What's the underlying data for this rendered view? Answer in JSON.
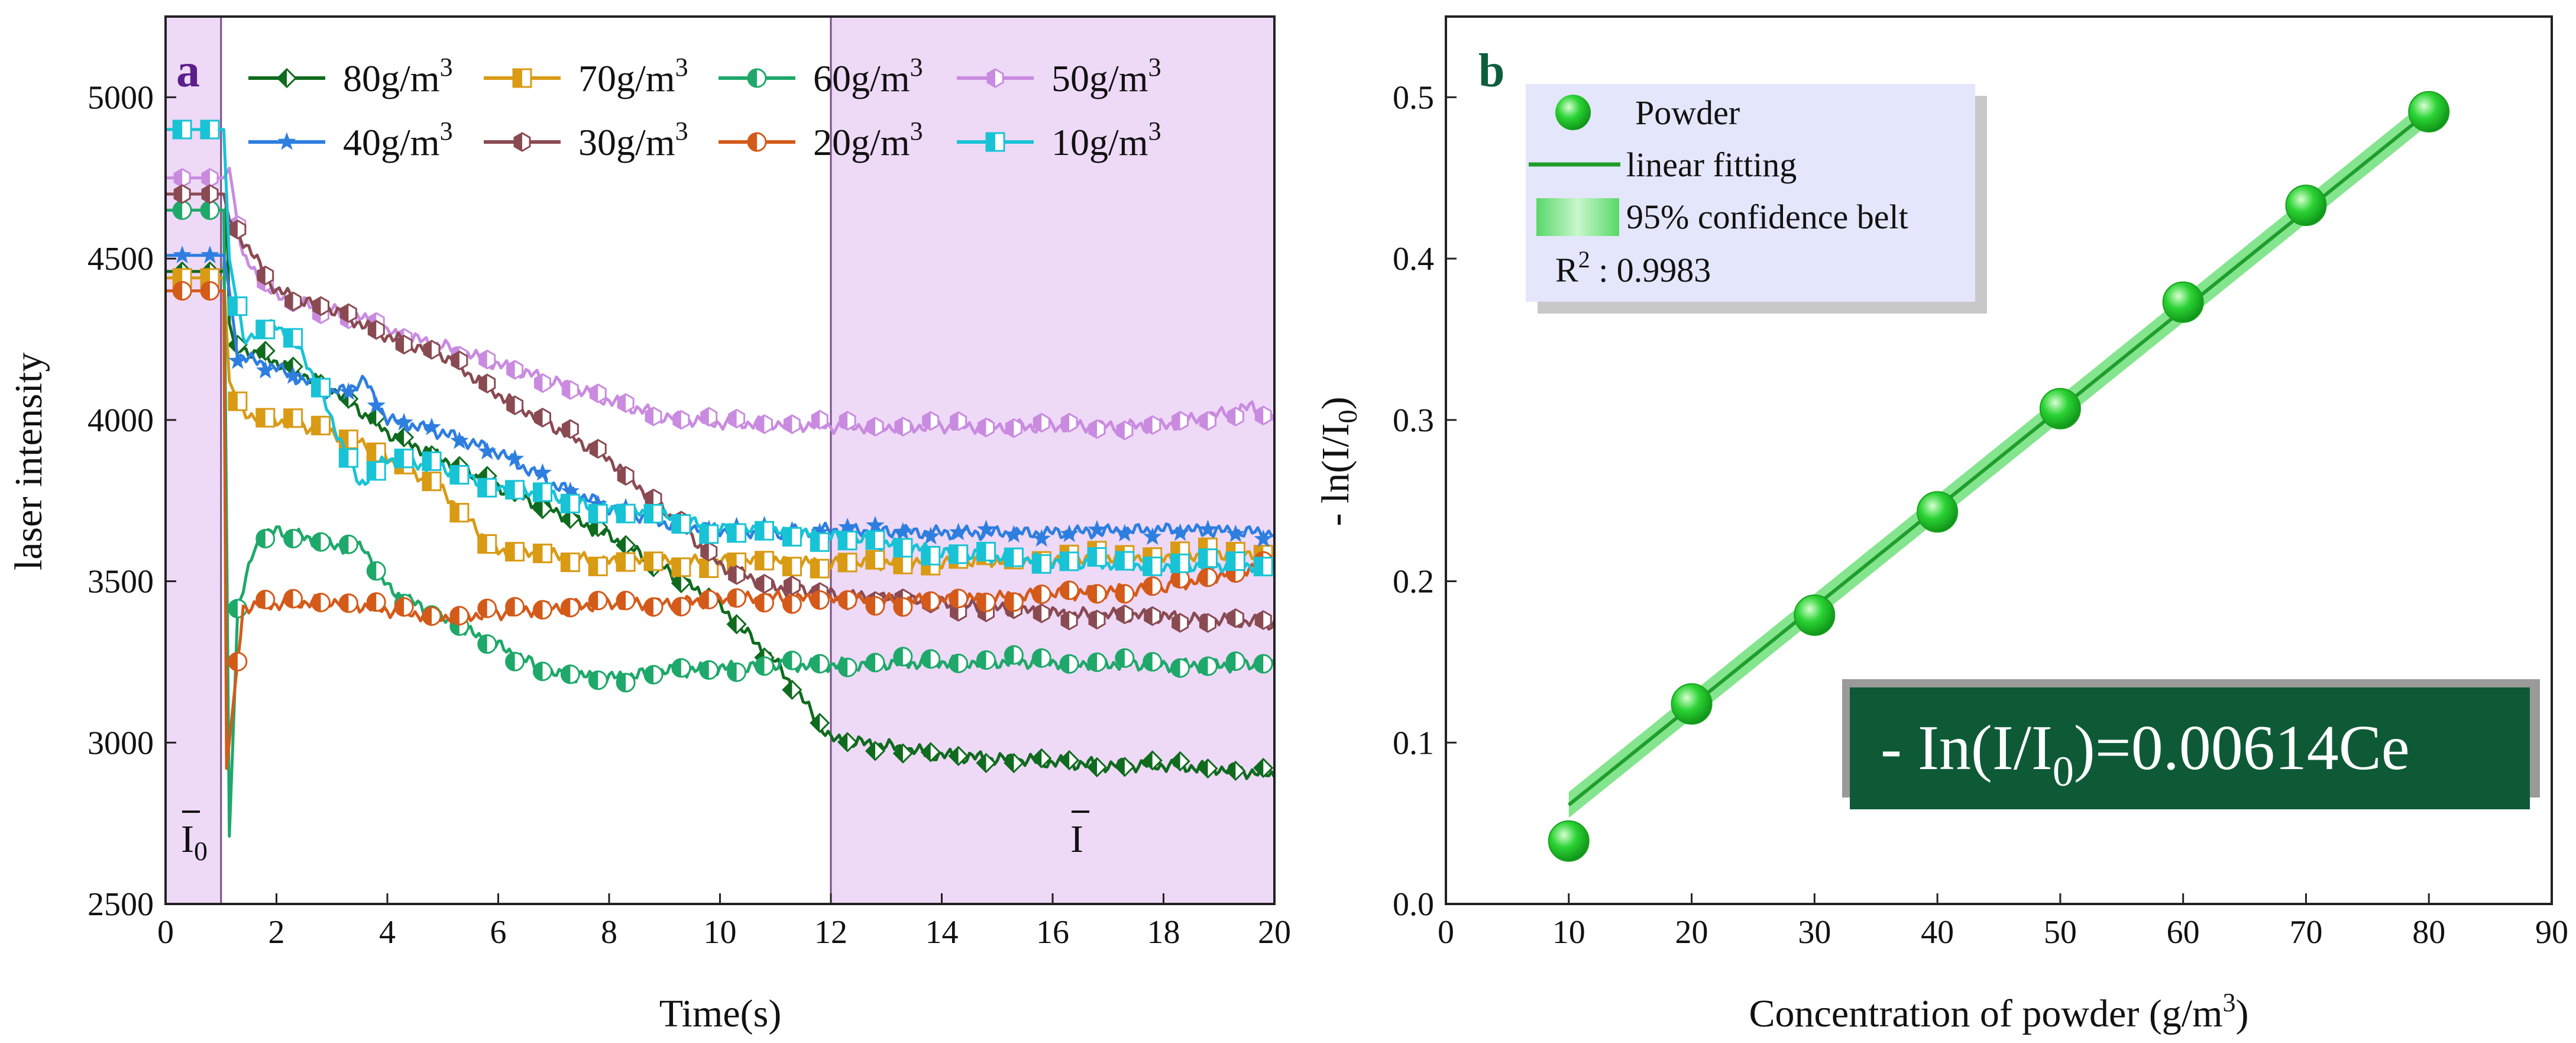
{
  "colors": {
    "region_fill": "#eed9f7",
    "region_border": "#7a4d8a",
    "fit_line": "#1f9e2c",
    "belt": "#6fe07a",
    "marker": "#1ec227",
    "marker_light": "#aef7a8",
    "legend_b_bg": "#e4e6fb",
    "legend_b_shadow": "#c8c8c8",
    "formula_bg": "#0e5a37",
    "formula_shadow": "#9a9a9a",
    "letter_a": "#5a1f8a",
    "letter_b": "#0d5d3c"
  },
  "chart_data": [
    {
      "id": "a",
      "panel_letter": "a",
      "type": "line",
      "xlabel": "Time(s)",
      "ylabel": "laser intensity",
      "xlim": [
        0,
        20
      ],
      "ylim": [
        2500,
        5250
      ],
      "xticks": [
        0,
        2,
        4,
        6,
        8,
        10,
        12,
        14,
        16,
        18,
        20
      ],
      "yticks": [
        2500,
        3000,
        3500,
        4000,
        4500,
        5000
      ],
      "shaded_regions": [
        [
          0,
          1
        ],
        [
          12,
          20
        ]
      ],
      "annotations": [
        {
          "text_base": "I",
          "text_sub": "0",
          "x": 0.5,
          "y": 2740
        },
        {
          "text_base": "I",
          "text_sub": "",
          "x": 16.8,
          "y": 2740
        }
      ],
      "series": [
        {
          "name": "80g/m³",
          "label_base": "80g/m",
          "label_sup": "3",
          "color": "#0f6b1e",
          "marker": "diamond",
          "points": [
            [
              0,
              4460
            ],
            [
              1.05,
              4460
            ],
            [
              1.1,
              4700
            ],
            [
              1.15,
              4300
            ],
            [
              1.25,
              4230
            ],
            [
              2,
              4180
            ],
            [
              3,
              4100
            ],
            [
              4,
              3960
            ],
            [
              5,
              3880
            ],
            [
              6,
              3790
            ],
            [
              7,
              3720
            ],
            [
              8,
              3640
            ],
            [
              9,
              3540
            ],
            [
              10,
              3420
            ],
            [
              11,
              3250
            ],
            [
              12,
              3010
            ],
            [
              13,
              2990
            ],
            [
              14,
              2960
            ],
            [
              15,
              2950
            ],
            [
              16,
              2940
            ],
            [
              17,
              2930
            ],
            [
              18,
              2930
            ],
            [
              19,
              2920
            ],
            [
              20,
              2900
            ]
          ]
        },
        {
          "name": "70g/m³",
          "label_base": "70g/m",
          "label_sup": "3",
          "color": "#d99a14",
          "marker": "square-half",
          "points": [
            [
              0,
              4440
            ],
            [
              1.05,
              4440
            ],
            [
              1.15,
              4120
            ],
            [
              1.4,
              4020
            ],
            [
              2,
              4000
            ],
            [
              3,
              3960
            ],
            [
              3.6,
              3930
            ],
            [
              4,
              3880
            ],
            [
              5,
              3780
            ],
            [
              6,
              3590
            ],
            [
              7,
              3580
            ],
            [
              8,
              3560
            ],
            [
              9,
              3560
            ],
            [
              10,
              3560
            ],
            [
              11,
              3560
            ],
            [
              12,
              3555
            ],
            [
              14,
              3560
            ],
            [
              16,
              3570
            ],
            [
              18,
              3580
            ],
            [
              20,
              3590
            ]
          ]
        },
        {
          "name": "60g/m³",
          "label_base": "60g/m",
          "label_sup": "3",
          "color": "#1ea86a",
          "marker": "circle-half",
          "points": [
            [
              0,
              4650
            ],
            [
              1.05,
              4650
            ],
            [
              1.15,
              2710
            ],
            [
              1.3,
              3400
            ],
            [
              1.6,
              3610
            ],
            [
              2,
              3660
            ],
            [
              3,
              3610
            ],
            [
              3.6,
              3600
            ],
            [
              4,
              3480
            ],
            [
              5,
              3380
            ],
            [
              6,
              3300
            ],
            [
              7,
              3210
            ],
            [
              8,
              3200
            ],
            [
              9,
              3220
            ],
            [
              10,
              3230
            ],
            [
              11,
              3240
            ],
            [
              12,
              3240
            ],
            [
              14,
              3250
            ],
            [
              16,
              3250
            ],
            [
              18,
              3240
            ],
            [
              20,
              3240
            ]
          ]
        },
        {
          "name": "50g/m³",
          "label_base": "50g/m",
          "label_sup": "3",
          "color": "#c98be0",
          "marker": "hexagon-half",
          "points": [
            [
              0,
              4750
            ],
            [
              1.05,
              4750
            ],
            [
              1.15,
              4780
            ],
            [
              1.4,
              4500
            ],
            [
              2,
              4380
            ],
            [
              3,
              4340
            ],
            [
              3.8,
              4300
            ],
            [
              4,
              4270
            ],
            [
              5,
              4230
            ],
            [
              6,
              4170
            ],
            [
              7,
              4120
            ],
            [
              8,
              4060
            ],
            [
              9,
              4010
            ],
            [
              10,
              3990
            ],
            [
              11,
              3990
            ],
            [
              12,
              3980
            ],
            [
              14,
              3980
            ],
            [
              16,
              3980
            ],
            [
              18,
              3980
            ],
            [
              19.6,
              4040
            ],
            [
              20,
              3990
            ]
          ]
        },
        {
          "name": "40g/m³",
          "label_base": "40g/m",
          "label_sup": "3",
          "color": "#2e7ee0",
          "marker": "star",
          "points": [
            [
              0,
              4510
            ],
            [
              1.05,
              4510
            ],
            [
              1.15,
              4400
            ],
            [
              1.3,
              4200
            ],
            [
              2,
              4160
            ],
            [
              3,
              4080
            ],
            [
              3.6,
              4120
            ],
            [
              4,
              4000
            ],
            [
              5,
              3960
            ],
            [
              6,
              3900
            ],
            [
              7,
              3800
            ],
            [
              8,
              3730
            ],
            [
              9,
              3680
            ],
            [
              10,
              3660
            ],
            [
              11,
              3650
            ],
            [
              12,
              3660
            ],
            [
              14,
              3650
            ],
            [
              16,
              3650
            ],
            [
              18,
              3660
            ],
            [
              20,
              3650
            ]
          ]
        },
        {
          "name": "30g/m³",
          "label_base": "30g/m",
          "label_sup": "3",
          "color": "#8a4a52",
          "marker": "hexagon-half",
          "points": [
            [
              0,
              4700
            ],
            [
              1.05,
              4700
            ],
            [
              1.15,
              4620
            ],
            [
              1.5,
              4530
            ],
            [
              2,
              4400
            ],
            [
              3,
              4340
            ],
            [
              4,
              4260
            ],
            [
              5,
              4200
            ],
            [
              6,
              4080
            ],
            [
              7,
              3980
            ],
            [
              8,
              3880
            ],
            [
              9,
              3720
            ],
            [
              10,
              3550
            ],
            [
              11,
              3480
            ],
            [
              12,
              3460
            ],
            [
              14,
              3430
            ],
            [
              16,
              3400
            ],
            [
              18,
              3390
            ],
            [
              20,
              3370
            ]
          ]
        },
        {
          "name": "20g/m³",
          "label_base": "20g/m",
          "label_sup": "3",
          "color": "#d45a1a",
          "marker": "circle-half",
          "points": [
            [
              0,
              4400
            ],
            [
              1.05,
              4400
            ],
            [
              1.1,
              2920
            ],
            [
              1.4,
              3420
            ],
            [
              2,
              3430
            ],
            [
              3,
              3440
            ],
            [
              4,
              3410
            ],
            [
              5,
              3390
            ],
            [
              6,
              3400
            ],
            [
              7,
              3420
            ],
            [
              8,
              3430
            ],
            [
              9,
              3430
            ],
            [
              10,
              3440
            ],
            [
              11,
              3450
            ],
            [
              12,
              3440
            ],
            [
              14,
              3440
            ],
            [
              16,
              3460
            ],
            [
              18,
              3480
            ],
            [
              20,
              3560
            ]
          ]
        },
        {
          "name": "10g/m³",
          "label_base": "10g/m",
          "label_sup": "3",
          "color": "#18c3d6",
          "marker": "square-half",
          "points": [
            [
              0,
              4900
            ],
            [
              1.05,
              4900
            ],
            [
              1.15,
              4500
            ],
            [
              1.4,
              4250
            ],
            [
              2,
              4300
            ],
            [
              2.5,
              4200
            ],
            [
              3,
              4000
            ],
            [
              3.5,
              3800
            ],
            [
              4,
              3880
            ],
            [
              5,
              3850
            ],
            [
              6,
              3790
            ],
            [
              7,
              3760
            ],
            [
              8,
              3720
            ],
            [
              9,
              3700
            ],
            [
              10,
              3660
            ],
            [
              11,
              3650
            ],
            [
              12,
              3640
            ],
            [
              14,
              3590
            ],
            [
              16,
              3560
            ],
            [
              18,
              3550
            ],
            [
              20,
              3550
            ]
          ]
        }
      ]
    },
    {
      "id": "b",
      "panel_letter": "b",
      "type": "scatter",
      "xlabel_base": "Concentration of powder (g/m",
      "xlabel_sup": "3",
      "xlabel_end": ")",
      "ylabel_base": "- ln(I/I",
      "ylabel_sub": "0",
      "ylabel_end": ")",
      "xlim": [
        0,
        90
      ],
      "ylim": [
        0.0,
        0.55
      ],
      "xticks": [
        0,
        10,
        20,
        30,
        40,
        50,
        60,
        70,
        80,
        90
      ],
      "yticks": [
        0.0,
        0.1,
        0.2,
        0.3,
        0.4,
        0.5
      ],
      "ytick_labels": [
        "0.0",
        "0.1",
        "0.2",
        "0.3",
        "0.4",
        "0.5"
      ],
      "x": [
        10,
        20,
        30,
        40,
        50,
        60,
        70,
        80
      ],
      "y": [
        0.039,
        0.124,
        0.179,
        0.243,
        0.307,
        0.373,
        0.433,
        0.491
      ],
      "fit": {
        "slope": 0.00614,
        "intercept": 0.0,
        "x_range": [
          10,
          80
        ]
      },
      "legend": {
        "items": [
          {
            "kind": "marker",
            "label": "Powder"
          },
          {
            "kind": "line",
            "label": "linear fitting"
          },
          {
            "kind": "belt",
            "label": "95% confidence belt"
          }
        ],
        "r2_base": "R",
        "r2_sup": "2",
        "r2_value": "  : 0.9983"
      },
      "formula": {
        "prefix": "- In(I/I",
        "sub": "0",
        "suffix": ")=0.00614Ce"
      }
    }
  ]
}
